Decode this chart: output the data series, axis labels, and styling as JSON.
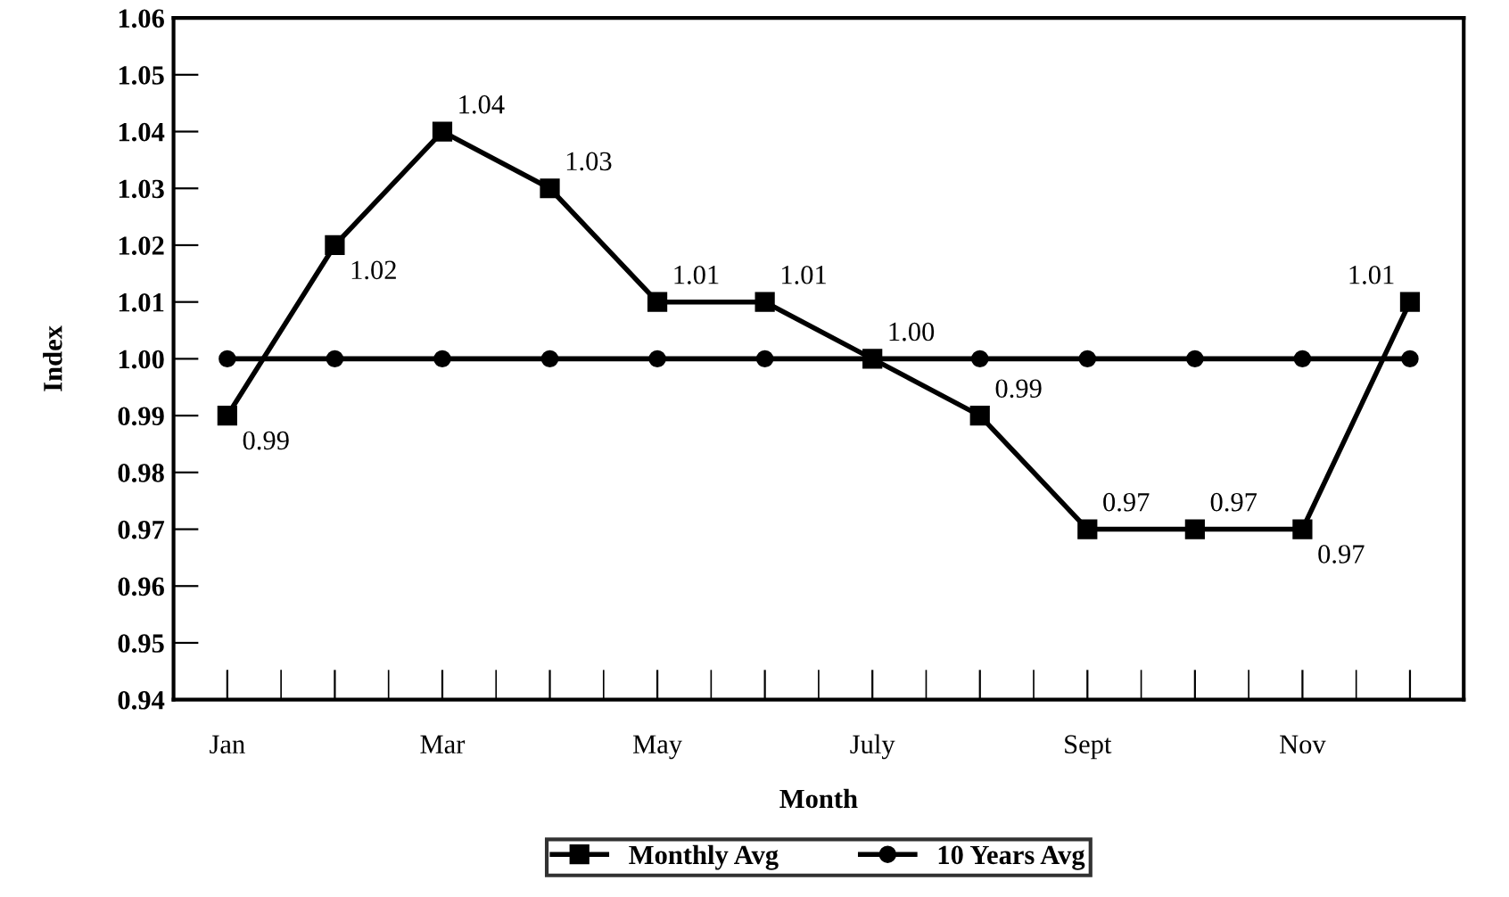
{
  "chart_data": {
    "type": "line",
    "xlabel": "Month",
    "ylabel": "Index",
    "categories": [
      "Jan",
      null,
      "Mar",
      null,
      "May",
      null,
      "July",
      null,
      "Sept",
      null,
      "Nov",
      null
    ],
    "series": [
      {
        "name": "Monthly Avg",
        "color": "#000000",
        "marker": "square",
        "values": [
          0.99,
          1.02,
          1.04,
          1.03,
          1.01,
          1.01,
          1.0,
          0.99,
          0.97,
          0.97,
          0.97,
          1.01
        ],
        "value_labels": [
          "0.99",
          "1.02",
          "1.04",
          "1.03",
          "1.01",
          "1.01",
          "1.00",
          "0.99",
          "0.97",
          "0.97",
          "0.97",
          "1.01"
        ]
      },
      {
        "name": "10 Years Avg",
        "color": "#000000",
        "marker": "circle",
        "values": [
          1.0,
          1.0,
          1.0,
          1.0,
          1.0,
          1.0,
          1.0,
          1.0,
          1.0,
          1.0,
          1.0,
          1.0
        ]
      }
    ],
    "ylim": [
      0.94,
      1.06
    ],
    "yticks": [
      0.94,
      0.95,
      0.96,
      0.97,
      0.98,
      0.99,
      {
        "value": 1.0,
        "label": "1.00"
      },
      1.01,
      1.02,
      1.03,
      1.04,
      1.05,
      1.06
    ],
    "grid": false,
    "legend": "bottom",
    "line_style": "solid"
  }
}
